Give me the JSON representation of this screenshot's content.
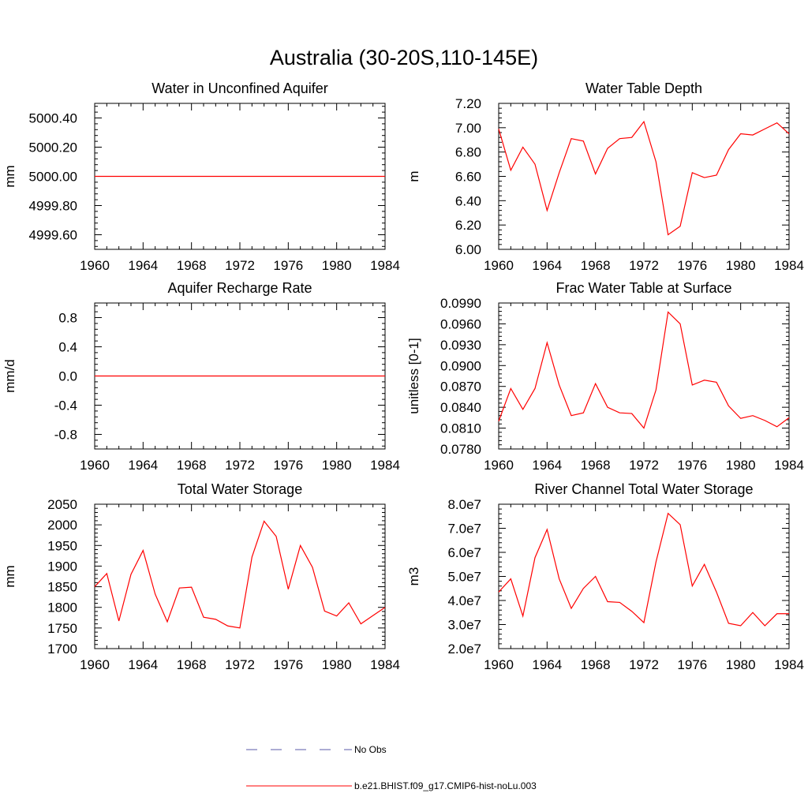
{
  "page_title": "Australia (30-20S,110-145E)",
  "legend": {
    "items": [
      {
        "label": "No Obs",
        "color": "#5a5aa8",
        "style": "dashed"
      },
      {
        "label": "b.e21.BHIST.f09_g17.CMIP6-hist-noLu.003",
        "color": "#ff0000",
        "style": "solid"
      }
    ]
  },
  "chart_data": [
    {
      "type": "line",
      "title": "Water in Unconfined Aquifer",
      "ylabel": "mm",
      "xlim": [
        1960,
        1984
      ],
      "ylim": [
        4999.5,
        5000.5
      ],
      "xticks": [
        1960,
        1964,
        1968,
        1972,
        1976,
        1980,
        1984
      ],
      "xtick_labels": [
        "1960",
        "1964",
        "1968",
        "1972",
        "1976",
        "1980",
        "1984"
      ],
      "yticks": [
        4999.6,
        4999.8,
        5000.0,
        5000.2,
        5000.4
      ],
      "ytick_labels": [
        "4999.60",
        "4999.80",
        "5000.00",
        "5000.20",
        "5000.40"
      ],
      "series": [
        {
          "color": "#ff0000",
          "x": [
            1960,
            1984
          ],
          "values": [
            5000.0,
            5000.0
          ]
        }
      ]
    },
    {
      "type": "line",
      "title": "Water Table Depth",
      "ylabel": "m",
      "xlim": [
        1960,
        1984
      ],
      "ylim": [
        6.0,
        7.2
      ],
      "xticks": [
        1960,
        1964,
        1968,
        1972,
        1976,
        1980,
        1984
      ],
      "xtick_labels": [
        "1960",
        "1964",
        "1968",
        "1972",
        "1976",
        "1980",
        "1984"
      ],
      "yticks": [
        6.0,
        6.2,
        6.4,
        6.6,
        6.8,
        7.0,
        7.2
      ],
      "ytick_labels": [
        "6.00",
        "6.20",
        "6.40",
        "6.60",
        "6.80",
        "7.00",
        "7.20"
      ],
      "series": [
        {
          "color": "#ff0000",
          "x": [
            1960,
            1961,
            1962,
            1963,
            1964,
            1965,
            1966,
            1967,
            1968,
            1969,
            1970,
            1971,
            1972,
            1973,
            1974,
            1975,
            1976,
            1977,
            1978,
            1979,
            1980,
            1981,
            1982,
            1983,
            1984
          ],
          "values": [
            6.99,
            6.65,
            6.84,
            6.7,
            6.32,
            6.63,
            6.91,
            6.89,
            6.62,
            6.83,
            6.91,
            6.92,
            7.05,
            6.72,
            6.12,
            6.19,
            6.63,
            6.59,
            6.61,
            6.82,
            6.95,
            6.94,
            6.99,
            7.04,
            6.95
          ]
        }
      ]
    },
    {
      "type": "line",
      "title": "Aquifer Recharge Rate",
      "ylabel": "mm/d",
      "xlim": [
        1960,
        1984
      ],
      "ylim": [
        -1.0,
        1.0
      ],
      "xticks": [
        1960,
        1964,
        1968,
        1972,
        1976,
        1980,
        1984
      ],
      "xtick_labels": [
        "1960",
        "1964",
        "1968",
        "1972",
        "1976",
        "1980",
        "1984"
      ],
      "yticks": [
        -0.8,
        -0.4,
        0.0,
        0.4,
        0.8
      ],
      "ytick_labels": [
        "-0.8",
        "-0.4",
        "0.0",
        "0.4",
        "0.8"
      ],
      "series": [
        {
          "color": "#ff0000",
          "x": [
            1960,
            1984
          ],
          "values": [
            0.0,
            0.0
          ]
        }
      ]
    },
    {
      "type": "line",
      "title": "Frac Water Table at Surface",
      "ylabel": "unitless [0-1]",
      "xlim": [
        1960,
        1984
      ],
      "ylim": [
        0.078,
        0.099
      ],
      "xticks": [
        1960,
        1964,
        1968,
        1972,
        1976,
        1980,
        1984
      ],
      "xtick_labels": [
        "1960",
        "1964",
        "1968",
        "1972",
        "1976",
        "1980",
        "1984"
      ],
      "yticks": [
        0.078,
        0.081,
        0.084,
        0.087,
        0.09,
        0.093,
        0.096,
        0.099
      ],
      "ytick_labels": [
        "0.0780",
        "0.0810",
        "0.0840",
        "0.0870",
        "0.0900",
        "0.0930",
        "0.0960",
        "0.0990"
      ],
      "series": [
        {
          "color": "#ff0000",
          "x": [
            1960,
            1961,
            1962,
            1963,
            1964,
            1965,
            1966,
            1967,
            1968,
            1969,
            1970,
            1971,
            1972,
            1973,
            1974,
            1975,
            1976,
            1977,
            1978,
            1979,
            1980,
            1981,
            1982,
            1983,
            1984
          ],
          "values": [
            0.082,
            0.0867,
            0.0837,
            0.0867,
            0.0933,
            0.0872,
            0.0828,
            0.0832,
            0.0874,
            0.084,
            0.0832,
            0.0831,
            0.081,
            0.0865,
            0.0977,
            0.096,
            0.0872,
            0.0879,
            0.0876,
            0.0842,
            0.0824,
            0.0828,
            0.0821,
            0.0812,
            0.0825
          ]
        }
      ]
    },
    {
      "type": "line",
      "title": "Total Water Storage",
      "ylabel": "mm",
      "xlim": [
        1960,
        1984
      ],
      "ylim": [
        1700,
        2050
      ],
      "xticks": [
        1960,
        1964,
        1968,
        1972,
        1976,
        1980,
        1984
      ],
      "xtick_labels": [
        "1960",
        "1964",
        "1968",
        "1972",
        "1976",
        "1980",
        "1984"
      ],
      "yticks": [
        1700,
        1750,
        1800,
        1850,
        1900,
        1950,
        2000,
        2050
      ],
      "ytick_labels": [
        "1700",
        "1750",
        "1800",
        "1850",
        "1900",
        "1950",
        "2000",
        "2050"
      ],
      "series": [
        {
          "color": "#ff0000",
          "x": [
            1960,
            1961,
            1962,
            1963,
            1964,
            1965,
            1966,
            1967,
            1968,
            1969,
            1970,
            1971,
            1972,
            1973,
            1974,
            1975,
            1976,
            1977,
            1978,
            1979,
            1980,
            1981,
            1982,
            1983,
            1984
          ],
          "values": [
            1850,
            1882,
            1767,
            1880,
            1938,
            1832,
            1765,
            1847,
            1849,
            1776,
            1771,
            1755,
            1750,
            1922,
            2009,
            1972,
            1844,
            1950,
            1897,
            1791,
            1779,
            1811,
            1760,
            1780,
            1800
          ]
        }
      ]
    },
    {
      "type": "line",
      "title": "River Channel Total Water Storage",
      "ylabel": "m3",
      "xlim": [
        1960,
        1984
      ],
      "ylim": [
        20000000,
        80000000
      ],
      "xticks": [
        1960,
        1964,
        1968,
        1972,
        1976,
        1980,
        1984
      ],
      "xtick_labels": [
        "1960",
        "1964",
        "1968",
        "1972",
        "1976",
        "1980",
        "1984"
      ],
      "yticks": [
        20000000,
        30000000,
        40000000,
        50000000,
        60000000,
        70000000,
        80000000
      ],
      "ytick_labels": [
        "2.0e7",
        "3.0e7",
        "4.0e7",
        "5.0e7",
        "6.0e7",
        "7.0e7",
        "8.0e7"
      ],
      "series": [
        {
          "color": "#ff0000",
          "x": [
            1960,
            1961,
            1962,
            1963,
            1964,
            1965,
            1966,
            1967,
            1968,
            1969,
            1970,
            1971,
            1972,
            1973,
            1974,
            1975,
            1976,
            1977,
            1978,
            1979,
            1980,
            1981,
            1982,
            1983,
            1984
          ],
          "values": [
            43500000,
            49000000,
            33500000,
            57800000,
            69500000,
            49000000,
            36700000,
            45000000,
            50000000,
            39500000,
            39200000,
            35500000,
            30800000,
            56000000,
            76200000,
            71500000,
            46000000,
            55000000,
            43500000,
            30500000,
            29500000,
            35000000,
            29500000,
            34500000,
            34500000
          ]
        }
      ]
    }
  ]
}
